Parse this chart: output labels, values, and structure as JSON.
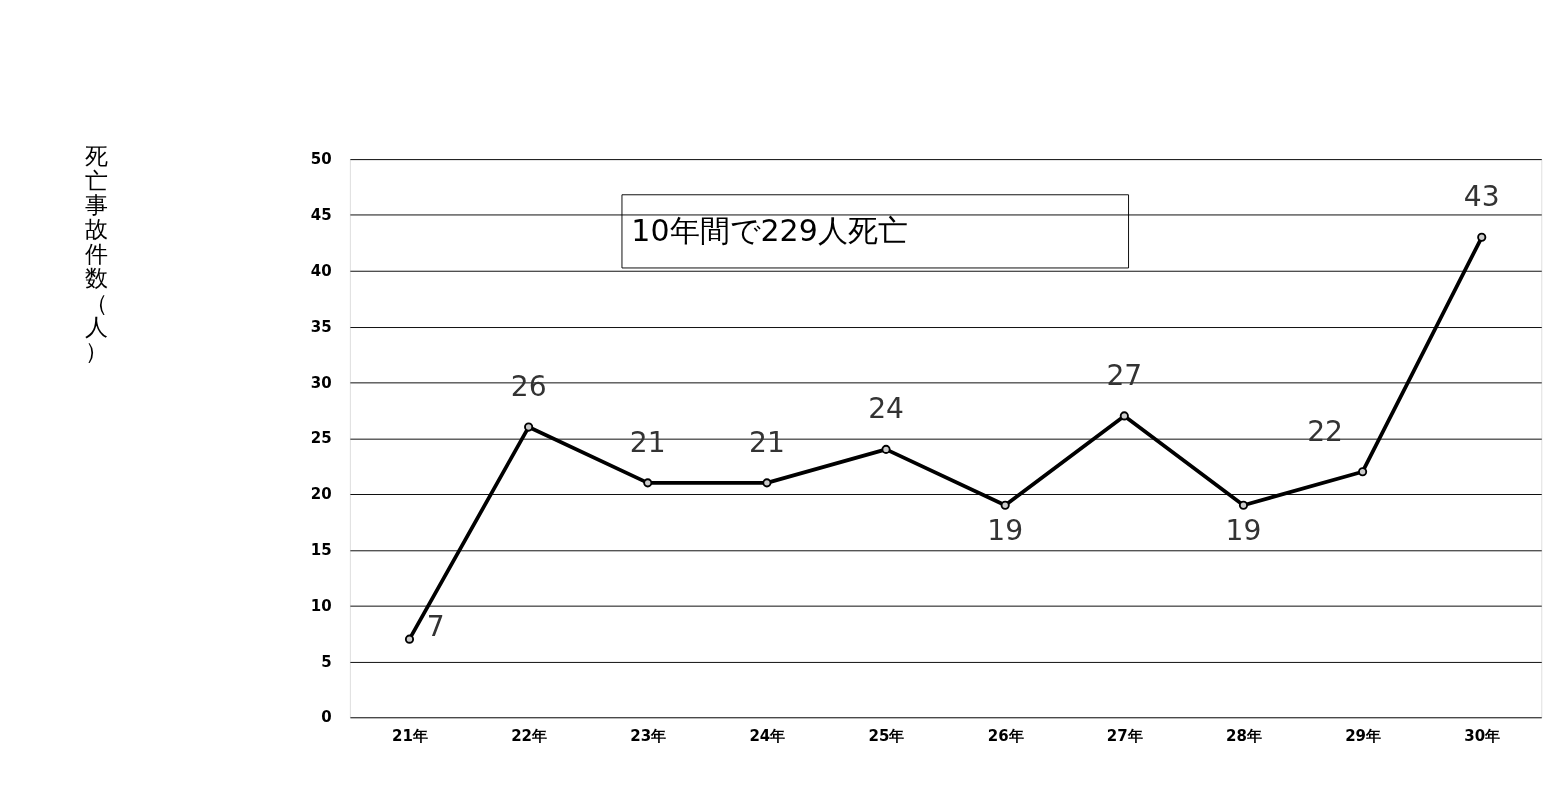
{
  "chart_data": {
    "type": "line",
    "ylabel": "死亡事故件数（人）",
    "annotations": [
      "10年間で229人死亡"
    ],
    "categories": [
      "21年",
      "22年",
      "23年",
      "24年",
      "25年",
      "26年",
      "27年",
      "28年",
      "29年",
      "30年"
    ],
    "series": [
      {
        "color": "#000000",
        "values": [
          7,
          26,
          21,
          21,
          24,
          19,
          27,
          19,
          22,
          43
        ]
      }
    ],
    "ylim": [
      0,
      50
    ],
    "yticks": [
      0,
      5,
      10,
      15,
      20,
      25,
      30,
      35,
      40,
      45,
      50
    ],
    "grid": "y",
    "marker": "circle",
    "line_style": "solid",
    "data_labels": true
  }
}
